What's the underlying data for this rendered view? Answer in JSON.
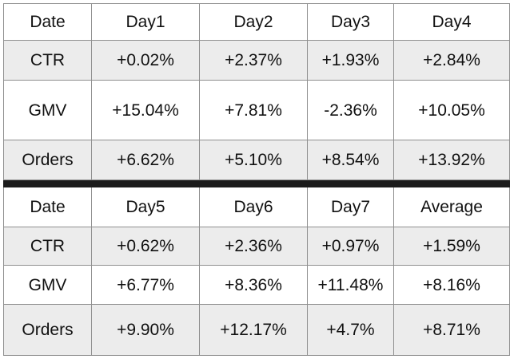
{
  "sections": [
    {
      "header": [
        "Date",
        "Day1",
        "Day2",
        "Day3",
        "Day4"
      ],
      "rows": [
        {
          "label": "CTR",
          "values": [
            "+0.02%",
            "+2.37%",
            "+1.93%",
            "+2.84%"
          ]
        },
        {
          "label": "GMV",
          "values": [
            "+15.04%",
            "+7.81%",
            "-2.36%",
            "+10.05%"
          ]
        },
        {
          "label": "Orders",
          "values": [
            "+6.62%",
            "+5.10%",
            "+8.54%",
            "+13.92%"
          ]
        }
      ]
    },
    {
      "header": [
        "Date",
        "Day5",
        "Day6",
        "Day7",
        "Average"
      ],
      "rows": [
        {
          "label": "CTR",
          "values": [
            "+0.62%",
            "+2.36%",
            "+0.97%",
            "+1.59%"
          ]
        },
        {
          "label": "GMV",
          "values": [
            "+6.77%",
            "+8.36%",
            "+11.48%",
            "+8.16%"
          ]
        },
        {
          "label": "Orders",
          "values": [
            "+9.90%",
            "+12.17%",
            "+4.7%",
            "+8.71%"
          ]
        }
      ]
    }
  ],
  "colors": {
    "shaded_row_bg": "#ececec",
    "grid_border": "#8f8f8f",
    "section_divider": "#1b1b1b",
    "text": "#111111",
    "page_bg": "#ffffff"
  }
}
